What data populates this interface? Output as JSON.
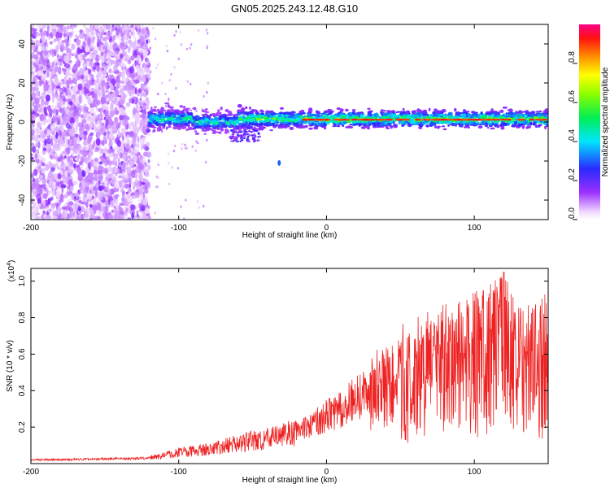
{
  "chart_data": [
    {
      "type": "heatmap",
      "title": "GN05.2025.243.12.48.G10",
      "xlabel": "Height of straight line (km)",
      "ylabel": "Frequency (Hz)",
      "xlim": [
        -200,
        150
      ],
      "ylim": [
        -50,
        50
      ],
      "x_ticks": [
        -200,
        -100,
        0,
        100
      ],
      "x_tick_labels": [
        "-200",
        "-100",
        "0",
        "100"
      ],
      "y_ticks": [
        -40,
        -20,
        0,
        20,
        40
      ],
      "y_tick_labels": [
        "-40",
        "-20",
        "0",
        "20",
        "40"
      ],
      "colorbar": {
        "label": "Normalized spectral amplitude",
        "range": [
          0,
          1
        ],
        "ticks": [
          0,
          0.2,
          0.4,
          0.6,
          0.8
        ],
        "tick_labels": [
          "0.0",
          "0.2",
          "0.4",
          "0.6",
          "0.8"
        ],
        "colormap": "rainbow: white->violet->blue->cyan->green->yellow->orange->red->magenta"
      },
      "features": [
        {
          "name": "noise-region",
          "x_range": [
            -200,
            -120
          ],
          "freq_range": [
            -50,
            50
          ],
          "amplitude": 0.15
        },
        {
          "name": "signal-band",
          "x_range": [
            -120,
            150
          ],
          "center_freq": 1.5,
          "half_width_hz": 4,
          "amplitude_peak": 0.9
        },
        {
          "name": "spur",
          "x": -32,
          "freq": -21,
          "amplitude": 0.3
        }
      ]
    },
    {
      "type": "line",
      "xlabel": "Height of straight line (km)",
      "ylabel": "SNR (10 * v/v)",
      "y_scale_label": "(x10",
      "y_scale_exponent": "4",
      "y_scale_close": ")",
      "xlim": [
        -200,
        150
      ],
      "ylim": [
        0,
        1.07
      ],
      "x_ticks": [
        -200,
        -100,
        0,
        100
      ],
      "x_tick_labels": [
        "-200",
        "-100",
        "0",
        "100"
      ],
      "y_ticks": [
        0.2,
        0.4,
        0.6,
        0.8,
        1.0
      ],
      "y_tick_labels": [
        "0.2",
        "0.4",
        "0.6",
        "0.8",
        "1.0"
      ],
      "series": [
        {
          "name": "SNR",
          "color": "#ee2222",
          "envelope_x": [
            -200,
            -150,
            -120,
            -100,
            -80,
            -60,
            -40,
            -20,
            -10,
            0,
            10,
            20,
            40,
            60,
            80,
            100,
            110,
            120,
            130,
            150
          ],
          "envelope_y": [
            0.02,
            0.025,
            0.03,
            0.06,
            0.08,
            0.11,
            0.14,
            0.17,
            0.21,
            0.26,
            0.3,
            0.36,
            0.42,
            0.46,
            0.5,
            0.55,
            0.58,
            0.6,
            0.5,
            0.55
          ],
          "spike_max_y": 1.05
        }
      ]
    }
  ]
}
